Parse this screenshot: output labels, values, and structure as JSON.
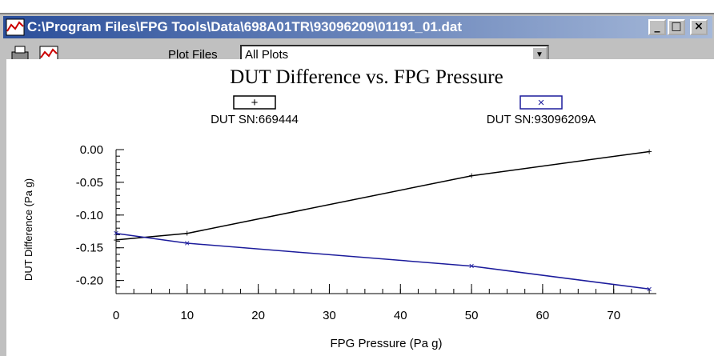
{
  "window": {
    "title": "C:\\Program Files\\FPG Tools\\Data\\698A01TR\\93096209\\01191_01.dat"
  },
  "toolbar": {
    "plot_files_label": "Plot Files",
    "plot_files_value": "All Plots"
  },
  "chart_data": {
    "type": "line",
    "title": "DUT Difference vs. FPG Pressure",
    "x_label": "FPG Pressure (Pa g)",
    "y_label": "DUT Difference (Pa g)",
    "x": [
      0,
      10,
      50,
      75
    ],
    "series": [
      {
        "name": "DUT SN:669444",
        "color": "#000000",
        "marker": "+",
        "values": [
          -0.138,
          -0.128,
          -0.04,
          -0.003
        ]
      },
      {
        "name": "DUT SN:93096209A",
        "color": "#1c1c9c",
        "marker": "×",
        "values": [
          -0.128,
          -0.143,
          -0.178,
          -0.213
        ]
      }
    ],
    "xlim": [
      0,
      76
    ],
    "xticks": [
      0,
      10,
      20,
      30,
      40,
      50,
      60,
      70
    ],
    "ylim": [
      -0.22,
      0
    ],
    "yticks": [
      {
        "value": 0,
        "label": "0.00"
      },
      {
        "value": -0.05,
        "label": "-0.05"
      },
      {
        "value": -0.1,
        "label": "-0.10"
      },
      {
        "value": -0.15,
        "label": "-0.15"
      },
      {
        "value": -0.2,
        "label": "-0.20"
      }
    ]
  }
}
